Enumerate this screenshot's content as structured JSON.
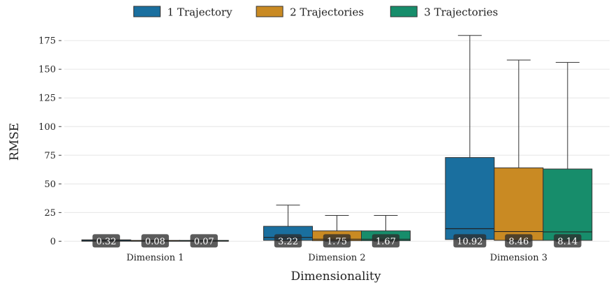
{
  "chart_data": {
    "type": "box",
    "xlabel": "Dimensionality",
    "ylabel": "RMSE",
    "ylim": [
      -4,
      183
    ],
    "yticks": [
      0,
      25,
      50,
      75,
      100,
      125,
      150,
      175
    ],
    "ytick_labels": [
      "0",
      "25",
      "50",
      "75",
      "100",
      "125",
      "150",
      "175"
    ],
    "grid": true,
    "legend_position": "top-center",
    "categories": [
      "Dimension 1",
      "Dimension 2",
      "Dimension 3"
    ],
    "series": [
      {
        "name": "1 Trajectory",
        "color": "#1a6f9f",
        "boxes": [
          {
            "whisker_low": 0,
            "q1": 0,
            "median": 0.32,
            "q3": 1.2,
            "whisker_high": 1.2,
            "median_label": "0.32"
          },
          {
            "whisker_low": 0.5,
            "q1": 0.8,
            "median": 3.22,
            "q3": 13,
            "whisker_high": 31.5,
            "median_label": "3.22"
          },
          {
            "whisker_low": 0,
            "q1": 1.5,
            "median": 10.92,
            "q3": 73,
            "whisker_high": 179.5,
            "median_label": "10.92"
          }
        ]
      },
      {
        "name": "2 Trajectories",
        "color": "#c98a23",
        "boxes": [
          {
            "whisker_low": 0,
            "q1": 0,
            "median": 0.08,
            "q3": 0.25,
            "whisker_high": 0.25,
            "median_label": "0.08"
          },
          {
            "whisker_low": 0,
            "q1": 0.5,
            "median": 1.75,
            "q3": 9,
            "whisker_high": 22.5,
            "median_label": "1.75"
          },
          {
            "whisker_low": 0,
            "q1": 0.8,
            "median": 8.46,
            "q3": 64,
            "whisker_high": 158,
            "median_label": "8.46"
          }
        ]
      },
      {
        "name": "3 Trajectories",
        "color": "#178d6b",
        "boxes": [
          {
            "whisker_low": 0,
            "q1": 0,
            "median": 0.07,
            "q3": 0.25,
            "whisker_high": 0.25,
            "median_label": "0.07"
          },
          {
            "whisker_low": 0,
            "q1": 0.5,
            "median": 1.67,
            "q3": 9,
            "whisker_high": 22.5,
            "median_label": "1.67"
          },
          {
            "whisker_low": 0,
            "q1": 0.8,
            "median": 8.14,
            "q3": 63,
            "whisker_high": 156,
            "median_label": "8.14"
          }
        ]
      }
    ]
  }
}
